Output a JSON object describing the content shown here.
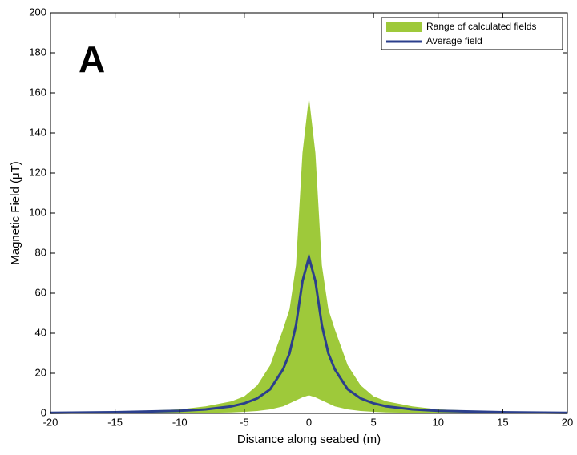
{
  "chart_data": {
    "type": "band-line",
    "annotation": "A",
    "x_label": "Distance along seabed (m)",
    "y_label": "Magnetic Field (μT)",
    "x": [
      -20,
      -15,
      -10,
      -8,
      -6,
      -5,
      -4,
      -3,
      -2,
      -1.5,
      -1,
      -0.5,
      0,
      0.5,
      1,
      1.5,
      2,
      3,
      4,
      5,
      6,
      8,
      10,
      15,
      20
    ],
    "band": {
      "name": "Range of calculated fields",
      "color": "#9ec93a",
      "upper": [
        0.5,
        0.8,
        2,
        3.5,
        6,
        8.5,
        14,
        24,
        42,
        52,
        74,
        130,
        158,
        130,
        74,
        52,
        42,
        24,
        14,
        8.5,
        6,
        3.5,
        2,
        0.8,
        0.5
      ],
      "lower": [
        0.05,
        0.1,
        0.2,
        0.3,
        0.5,
        0.8,
        1.2,
        2,
        3.5,
        5,
        6.5,
        8,
        9,
        8,
        6.5,
        5,
        3.5,
        2,
        1.2,
        0.8,
        0.5,
        0.3,
        0.2,
        0.1,
        0.05
      ]
    },
    "series": [
      {
        "name": "Average field",
        "color": "#2b3f8c",
        "values": [
          0.3,
          0.6,
          1.3,
          2,
          3.5,
          5,
          7.5,
          12,
          22,
          30,
          44,
          66,
          78,
          66,
          44,
          30,
          22,
          12,
          7.5,
          5,
          3.5,
          2,
          1.3,
          0.6,
          0.3
        ]
      }
    ],
    "xlim": [
      -20,
      20
    ],
    "xticks": [
      -20,
      -15,
      -10,
      -5,
      0,
      5,
      10,
      15,
      20
    ],
    "ylim": [
      0,
      200
    ],
    "yticks": [
      0,
      20,
      40,
      60,
      80,
      100,
      120,
      140,
      160,
      180,
      200
    ],
    "legend": "upper right"
  }
}
